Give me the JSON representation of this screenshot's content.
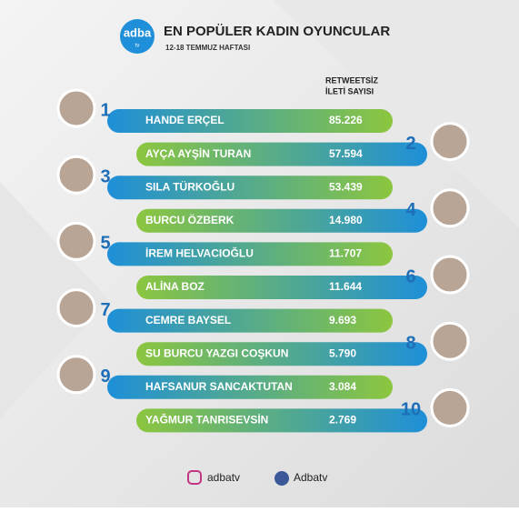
{
  "logo": {
    "main": "adba",
    "sub": "tv"
  },
  "header": {
    "title": "EN POPÜLER KADIN OYUNCULAR",
    "subtitle": "12-18 TEMMUZ HAFTASI"
  },
  "column_header": {
    "line1": "RETWEETSİZ",
    "line2": "İLETİ SAYISI"
  },
  "rows": [
    {
      "rank": 1,
      "name": "HANDE ERÇEL",
      "value": "85.226"
    },
    {
      "rank": 2,
      "name": "AYÇA AYŞİN TURAN",
      "value": "57.594"
    },
    {
      "rank": 3,
      "name": "SILA TÜRKOĞLU",
      "value": "53.439"
    },
    {
      "rank": 4,
      "name": "BURCU ÖZBERK",
      "value": "14.980"
    },
    {
      "rank": 5,
      "name": "İREM HELVACIOĞLU",
      "value": "11.707"
    },
    {
      "rank": 6,
      "name": "ALİNA BOZ",
      "value": "11.644"
    },
    {
      "rank": 7,
      "name": "CEMRE BAYSEL",
      "value": "9.693"
    },
    {
      "rank": 8,
      "name": "SU BURCU YAZGI COŞKUN",
      "value": "5.790"
    },
    {
      "rank": 9,
      "name": "HAFSANUR SANCAKTUTAN",
      "value": "3.084"
    },
    {
      "rank": 10,
      "name": "YAĞMUR TANRISEVSİN",
      "value": "2.769"
    }
  ],
  "footer": {
    "instagram": "adbatv",
    "facebook": "Adbatv"
  }
}
